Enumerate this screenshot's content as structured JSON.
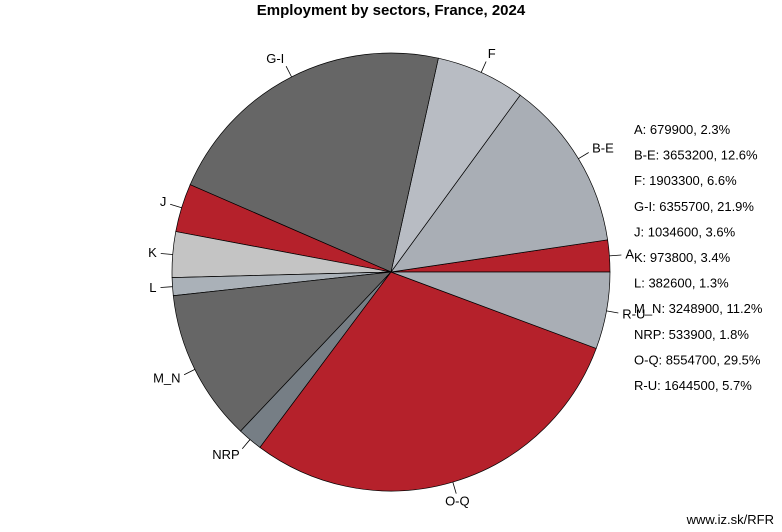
{
  "chart_data": {
    "type": "pie",
    "title": "Employment by sectors, France, 2024",
    "slices": [
      {
        "label": "A",
        "value": 679900,
        "percent": "2.3%",
        "color": "#b5212b",
        "legend": "A: 679900, 2.3%"
      },
      {
        "label": "B-E",
        "value": 3653200,
        "percent": "12.6%",
        "color": "#a9aeb5",
        "legend": "B-E: 3653200, 12.6%"
      },
      {
        "label": "F",
        "value": 1903300,
        "percent": "6.6%",
        "color": "#b8bcc3",
        "legend": "F: 1903300, 6.6%"
      },
      {
        "label": "G-I",
        "value": 6355700,
        "percent": "21.9%",
        "color": "#666666",
        "legend": "G-I: 6355700, 21.9%"
      },
      {
        "label": "J",
        "value": 1034600,
        "percent": "3.6%",
        "color": "#b5212b",
        "legend": "J: 1034600, 3.6%"
      },
      {
        "label": "K",
        "value": 973800,
        "percent": "3.4%",
        "color": "#c4c4c4",
        "legend": "K: 973800, 3.4%"
      },
      {
        "label": "L",
        "value": 382600,
        "percent": "1.3%",
        "color": "#aab1b8",
        "legend": "L: 382600, 1.3%"
      },
      {
        "label": "M_N",
        "value": 3248900,
        "percent": "11.2%",
        "color": "#666666",
        "legend": "M_N: 3248900, 11.2%"
      },
      {
        "label": "NRP",
        "value": 533900,
        "percent": "1.8%",
        "color": "#767e85",
        "legend": "NRP: 533900, 1.8%"
      },
      {
        "label": "O-Q",
        "value": 8554700,
        "percent": "29.5%",
        "color": "#b5212b",
        "legend": "O-Q: 8554700, 29.5%"
      },
      {
        "label": "R-U",
        "value": 1644500,
        "percent": "5.7%",
        "color": "#a9aeb5",
        "legend": "R-U: 1644500, 5.7%"
      }
    ],
    "legend_placement": "right"
  },
  "watermark": "www.iz.sk/RFR"
}
